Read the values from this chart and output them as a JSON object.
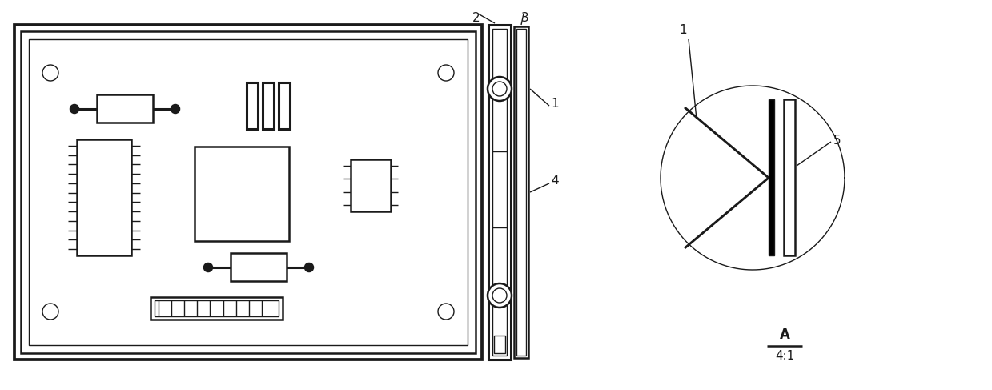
{
  "fig_width": 12.39,
  "fig_height": 4.87,
  "bg_color": "#ffffff",
  "line_color": "#1a1a1a",
  "lw_main": 1.8,
  "lw_thin": 1.0,
  "lw_thick": 2.2
}
